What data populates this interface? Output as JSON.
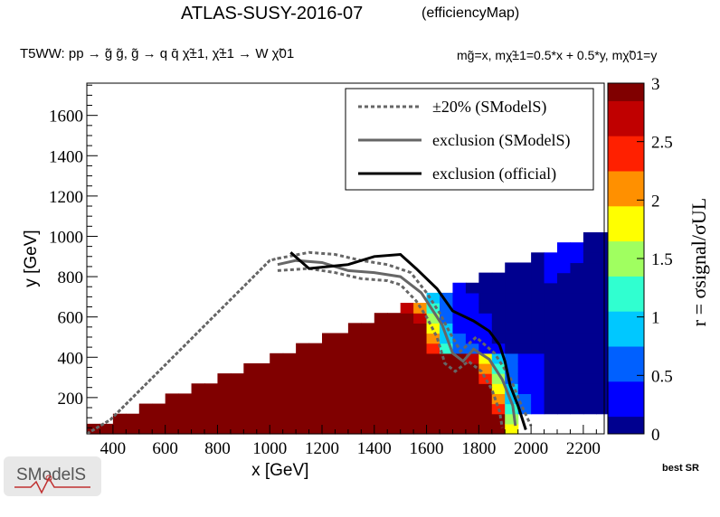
{
  "header": {
    "title": "ATLAS-SUSY-2016-07",
    "tag": "(efficiencyMap)",
    "process": "T5WW: pp → g̃ g̃, g̃ → q q̄ χ̃±1, χ̃±1 → W χ̃01",
    "mass_relation": "mg̃=x, mχ̃±1=0.5*x + 0.5*y, mχ̃01=y"
  },
  "footer": {
    "best_sr": "best SR",
    "logo_text": "SModelS"
  },
  "chart_data": {
    "type": "heatmap",
    "xlabel": "x [GeV]",
    "ylabel": "y [GeV]",
    "zlabel": "r = σsignal/σUL",
    "xlim": [
      300,
      2280
    ],
    "ylim": [
      20,
      1760
    ],
    "zlim": [
      0,
      3
    ],
    "x_ticks": [
      400,
      600,
      800,
      1000,
      1200,
      1400,
      1600,
      1800,
      2000,
      2200
    ],
    "y_ticks": [
      200,
      400,
      600,
      800,
      1000,
      1200,
      1400,
      1600
    ],
    "z_ticks": [
      "0",
      "0.5",
      "1",
      "1.5",
      "2",
      "2.5",
      "3"
    ],
    "cell_size_gev": 50,
    "colormap": [
      "#00008f",
      "#0000ff",
      "#0060ff",
      "#00c8ff",
      "#30ffd0",
      "#a0ff60",
      "#ffff00",
      "#ff9000",
      "#ff2000",
      "#c00000",
      "#800000"
    ],
    "legend": {
      "position": "top-right",
      "entries": [
        {
          "label": "±20% (SModelS)",
          "style": "dotted",
          "color": "#666666"
        },
        {
          "label": "exclusion (SModelS)",
          "style": "solid",
          "color": "#666666"
        },
        {
          "label": "exclusion (official)",
          "style": "solid",
          "color": "#000000"
        }
      ]
    },
    "exclusion_official": [
      [
        1080,
        920
      ],
      [
        1150,
        840
      ],
      [
        1300,
        860
      ],
      [
        1400,
        900
      ],
      [
        1500,
        910
      ],
      [
        1560,
        840
      ],
      [
        1640,
        740
      ],
      [
        1700,
        630
      ],
      [
        1780,
        580
      ],
      [
        1840,
        530
      ],
      [
        1880,
        460
      ],
      [
        1900,
        380
      ],
      [
        1920,
        260
      ],
      [
        1950,
        160
      ],
      [
        1980,
        40
      ]
    ],
    "exclusion_smodels": [
      [
        1030,
        860
      ],
      [
        1100,
        880
      ],
      [
        1200,
        870
      ],
      [
        1300,
        830
      ],
      [
        1400,
        820
      ],
      [
        1500,
        800
      ],
      [
        1580,
        720
      ],
      [
        1620,
        640
      ],
      [
        1660,
        560
      ],
      [
        1700,
        420
      ],
      [
        1740,
        380
      ],
      [
        1780,
        440
      ],
      [
        1840,
        390
      ],
      [
        1890,
        290
      ],
      [
        1930,
        160
      ],
      [
        1940,
        60
      ]
    ],
    "plus20_smodels": [
      [
        1030,
        890
      ],
      [
        1150,
        920
      ],
      [
        1250,
        910
      ],
      [
        1350,
        880
      ],
      [
        1450,
        860
      ],
      [
        1540,
        820
      ],
      [
        1600,
        720
      ],
      [
        1650,
        620
      ],
      [
        1690,
        520
      ],
      [
        1730,
        430
      ],
      [
        1790,
        500
      ],
      [
        1860,
        420
      ],
      [
        1920,
        300
      ],
      [
        1960,
        170
      ],
      [
        2000,
        60
      ]
    ],
    "minus20_smodels": [
      [
        1030,
        830
      ],
      [
        1150,
        840
      ],
      [
        1250,
        820
      ],
      [
        1350,
        790
      ],
      [
        1450,
        780
      ],
      [
        1500,
        760
      ],
      [
        1560,
        680
      ],
      [
        1600,
        600
      ],
      [
        1640,
        500
      ],
      [
        1670,
        370
      ],
      [
        1710,
        330
      ],
      [
        1760,
        380
      ],
      [
        1810,
        330
      ],
      [
        1850,
        240
      ],
      [
        1880,
        130
      ],
      [
        1890,
        50
      ]
    ]
  }
}
